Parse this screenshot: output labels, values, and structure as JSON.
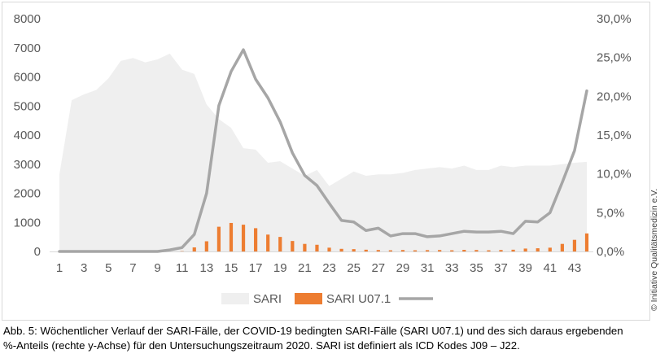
{
  "chart_data": {
    "type": "combo",
    "x": [
      1,
      2,
      3,
      4,
      5,
      6,
      7,
      8,
      9,
      10,
      11,
      12,
      13,
      14,
      15,
      16,
      17,
      18,
      19,
      20,
      21,
      22,
      23,
      24,
      25,
      26,
      27,
      28,
      29,
      30,
      31,
      32,
      33,
      34,
      35,
      36,
      37,
      38,
      39,
      40,
      41,
      42,
      43,
      44
    ],
    "x_tick_labels": [
      "1",
      "3",
      "5",
      "7",
      "9",
      "11",
      "13",
      "15",
      "17",
      "19",
      "21",
      "23",
      "25",
      "27",
      "29",
      "31",
      "33",
      "35",
      "37",
      "39",
      "41",
      "43"
    ],
    "series": [
      {
        "name": "SARI",
        "type": "area",
        "axis": "left",
        "color": "#efefef",
        "values": [
          2650,
          5200,
          5400,
          5550,
          5950,
          6550,
          6650,
          6500,
          6600,
          6800,
          6250,
          6100,
          5050,
          4550,
          4250,
          3550,
          3500,
          3050,
          3100,
          2850,
          2600,
          2800,
          2250,
          2500,
          2750,
          2600,
          2650,
          2650,
          2700,
          2800,
          2850,
          2900,
          2850,
          2950,
          2800,
          2800,
          2950,
          2900,
          2950,
          2950,
          2950,
          3000,
          3050,
          3080
        ]
      },
      {
        "name": "SARI U07.1",
        "type": "bar",
        "axis": "left",
        "color": "#ed7d31",
        "values": [
          0,
          0,
          0,
          0,
          0,
          0,
          0,
          0,
          0,
          0,
          10,
          140,
          350,
          850,
          980,
          920,
          800,
          580,
          500,
          360,
          260,
          230,
          130,
          90,
          80,
          60,
          50,
          40,
          50,
          40,
          45,
          50,
          40,
          55,
          50,
          40,
          50,
          60,
          100,
          110,
          130,
          260,
          400,
          620
        ]
      },
      {
        "name": "",
        "type": "line",
        "axis": "right",
        "unit": "%",
        "color": "#a6a6a6",
        "values": [
          0,
          0,
          0,
          0,
          0,
          0,
          0,
          0,
          0,
          0.2,
          0.5,
          2.2,
          7.5,
          18.8,
          23.2,
          26.0,
          22.2,
          19.8,
          16.7,
          12.7,
          9.8,
          8.5,
          6.2,
          4.0,
          3.8,
          2.7,
          3.0,
          2.0,
          2.3,
          2.3,
          1.9,
          2.0,
          2.3,
          2.6,
          2.5,
          2.5,
          2.6,
          2.3,
          3.9,
          3.8,
          5.0,
          8.9,
          13.0,
          20.7
        ]
      }
    ],
    "y_left": {
      "range": [
        0,
        8000
      ],
      "ticks": [
        "0",
        "1000",
        "2000",
        "3000",
        "4000",
        "5000",
        "6000",
        "7000",
        "8000"
      ]
    },
    "y_right": {
      "range": [
        0,
        30
      ],
      "ticks": [
        "0,0%",
        "5,0%",
        "10,0%",
        "15,0%",
        "20,0%",
        "25,0%",
        "30,0%"
      ]
    },
    "grid": false,
    "legend_position": "bottom-center"
  },
  "side_note": "© Initiative Qualitätsmedizin e.V.",
  "caption": {
    "line1": "Abb. 5: Wöchentlicher Verlauf der SARI-Fälle, der COVID-19 bedingten SARI-Fälle (SARI U07.1) und des sich daraus ergebenden",
    "line2": "%-Anteils (rechte y-Achse) für den Untersuchungszeitraum 2020. SARI ist definiert als ICD Kodes J09 – J22."
  }
}
